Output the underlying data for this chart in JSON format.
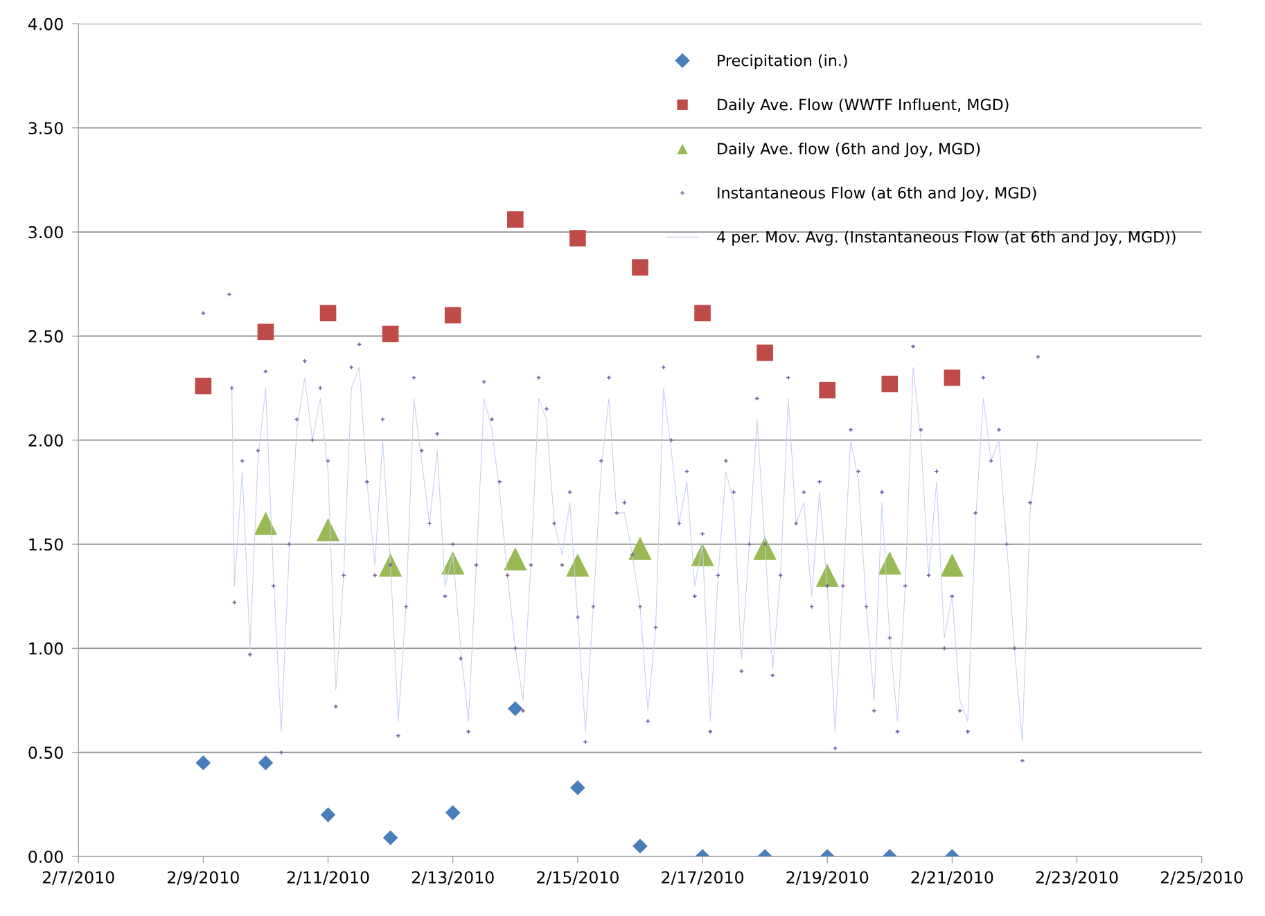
{
  "chart_data": {
    "type": "scatter",
    "legend": "top right",
    "grid": "y",
    "xlim": [
      "2010-02-07",
      "2010-02-25"
    ],
    "xticks": [
      {
        "value": "2010-02-07",
        "label": "2/7/2010"
      },
      {
        "value": "2010-02-09",
        "label": "2/9/2010"
      },
      {
        "value": "2010-02-11",
        "label": "2/11/2010"
      },
      {
        "value": "2010-02-13",
        "label": "2/13/2010"
      },
      {
        "value": "2010-02-15",
        "label": "2/15/2010"
      },
      {
        "value": "2010-02-17",
        "label": "2/17/2010"
      },
      {
        "value": "2010-02-19",
        "label": "2/19/2010"
      },
      {
        "value": "2010-02-21",
        "label": "2/21/2010"
      },
      {
        "value": "2010-02-23",
        "label": "2/23/2010"
      },
      {
        "value": "2010-02-25",
        "label": "2/25/2010"
      }
    ],
    "ylim": [
      0,
      4
    ],
    "yticks": [
      {
        "value": 0,
        "label": "0.00"
      },
      {
        "value": 0.5,
        "label": "0.50"
      },
      {
        "value": 1,
        "label": "1.00"
      },
      {
        "value": 1.5,
        "label": "1.50"
      },
      {
        "value": 2,
        "label": "2.00"
      },
      {
        "value": 2.5,
        "label": "2.50"
      },
      {
        "value": 3,
        "label": "3.00"
      },
      {
        "value": 3.5,
        "label": "3.50"
      },
      {
        "value": 4,
        "label": "4.00"
      }
    ],
    "series": [
      {
        "name": "Precipitation (in.)",
        "marker": "diamond",
        "color": "#4a7ebb",
        "x": [
          "2010-02-09",
          "2010-02-10",
          "2010-02-11",
          "2010-02-12",
          "2010-02-13",
          "2010-02-14",
          "2010-02-15",
          "2010-02-16",
          "2010-02-17",
          "2010-02-18",
          "2010-02-19",
          "2010-02-20",
          "2010-02-21"
        ],
        "values": [
          0.45,
          0.45,
          0.2,
          0.09,
          0.21,
          0.71,
          0.33,
          0.05,
          0,
          0,
          0,
          0,
          0
        ]
      },
      {
        "name": "Daily Ave. Flow (WWTF Influent, MGD)",
        "marker": "square",
        "color": "#be4b48",
        "x": [
          "2010-02-09",
          "2010-02-10",
          "2010-02-11",
          "2010-02-12",
          "2010-02-13",
          "2010-02-14",
          "2010-02-15",
          "2010-02-16",
          "2010-02-17",
          "2010-02-18",
          "2010-02-19",
          "2010-02-20",
          "2010-02-21"
        ],
        "values": [
          2.26,
          2.52,
          2.61,
          2.51,
          2.6,
          3.06,
          2.97,
          2.83,
          2.61,
          2.42,
          2.24,
          2.27,
          2.3
        ]
      },
      {
        "name": "Daily Ave. flow (6th and Joy, MGD)",
        "marker": "triangle",
        "color": "#98b954",
        "x": [
          "2010-02-10",
          "2010-02-11",
          "2010-02-12",
          "2010-02-13",
          "2010-02-14",
          "2010-02-15",
          "2010-02-16",
          "2010-02-17",
          "2010-02-18",
          "2010-02-19",
          "2010-02-20",
          "2010-02-21"
        ],
        "values": [
          1.6,
          1.57,
          1.4,
          1.41,
          1.43,
          1.4,
          1.48,
          1.45,
          1.48,
          1.35,
          1.41,
          1.4
        ]
      },
      {
        "name": "Instantaneous Flow (at 6th and Joy, MGD)",
        "marker": "cross",
        "color": "#7d60a0",
        "x": [
          "2010-02-09T00:00",
          "2010-02-09T10:00",
          "2010-02-09T11:00",
          "2010-02-09T12:00",
          "2010-02-09T15:00",
          "2010-02-09T18:00",
          "2010-02-09T21:00",
          "2010-02-10T00:00",
          "2010-02-10T03:00",
          "2010-02-10T06:00",
          "2010-02-10T09:00",
          "2010-02-10T12:00",
          "2010-02-10T15:00",
          "2010-02-10T18:00",
          "2010-02-10T21:00",
          "2010-02-11T00:00",
          "2010-02-11T03:00",
          "2010-02-11T06:00",
          "2010-02-11T09:00",
          "2010-02-11T12:00",
          "2010-02-11T15:00",
          "2010-02-11T18:00",
          "2010-02-11T21:00",
          "2010-02-12T00:00",
          "2010-02-12T03:00",
          "2010-02-12T06:00",
          "2010-02-12T09:00",
          "2010-02-12T12:00",
          "2010-02-12T15:00",
          "2010-02-12T18:00",
          "2010-02-12T21:00",
          "2010-02-13T00:00",
          "2010-02-13T03:00",
          "2010-02-13T06:00",
          "2010-02-13T09:00",
          "2010-02-13T12:00",
          "2010-02-13T15:00",
          "2010-02-13T18:00",
          "2010-02-13T21:00",
          "2010-02-14T00:00",
          "2010-02-14T03:00",
          "2010-02-14T06:00",
          "2010-02-14T09:00",
          "2010-02-14T12:00",
          "2010-02-14T15:00",
          "2010-02-14T18:00",
          "2010-02-14T21:00",
          "2010-02-15T00:00",
          "2010-02-15T03:00",
          "2010-02-15T06:00",
          "2010-02-15T09:00",
          "2010-02-15T12:00",
          "2010-02-15T15:00",
          "2010-02-15T18:00",
          "2010-02-15T21:00",
          "2010-02-16T00:00",
          "2010-02-16T03:00",
          "2010-02-16T06:00",
          "2010-02-16T09:00",
          "2010-02-16T12:00",
          "2010-02-16T15:00",
          "2010-02-16T18:00",
          "2010-02-16T21:00",
          "2010-02-17T00:00",
          "2010-02-17T03:00",
          "2010-02-17T06:00",
          "2010-02-17T09:00",
          "2010-02-17T12:00",
          "2010-02-17T15:00",
          "2010-02-17T18:00",
          "2010-02-17T21:00",
          "2010-02-18T00:00",
          "2010-02-18T03:00",
          "2010-02-18T06:00",
          "2010-02-18T09:00",
          "2010-02-18T12:00",
          "2010-02-18T15:00",
          "2010-02-18T18:00",
          "2010-02-18T21:00",
          "2010-02-19T00:00",
          "2010-02-19T03:00",
          "2010-02-19T06:00",
          "2010-02-19T09:00",
          "2010-02-19T12:00",
          "2010-02-19T15:00",
          "2010-02-19T18:00",
          "2010-02-19T21:00",
          "2010-02-20T00:00",
          "2010-02-20T03:00",
          "2010-02-20T06:00",
          "2010-02-20T09:00",
          "2010-02-20T12:00",
          "2010-02-20T15:00",
          "2010-02-20T18:00",
          "2010-02-20T21:00",
          "2010-02-21T00:00",
          "2010-02-21T03:00",
          "2010-02-21T06:00",
          "2010-02-21T09:00",
          "2010-02-21T12:00",
          "2010-02-21T15:00",
          "2010-02-21T18:00",
          "2010-02-21T21:00",
          "2010-02-22T00:00",
          "2010-02-22T03:00",
          "2010-02-22T06:00",
          "2010-02-22T09:00"
        ],
        "values": [
          2.61,
          2.7,
          2.25,
          1.22,
          1.9,
          0.97,
          1.95,
          2.33,
          1.3,
          0.5,
          1.5,
          2.1,
          2.38,
          2.0,
          2.25,
          1.9,
          0.72,
          1.35,
          2.35,
          2.46,
          1.8,
          1.35,
          2.1,
          1.4,
          0.58,
          1.2,
          2.3,
          1.95,
          1.6,
          2.03,
          1.25,
          1.5,
          0.95,
          0.6,
          1.4,
          2.28,
          2.1,
          1.8,
          1.35,
          1.0,
          0.7,
          1.4,
          2.3,
          2.15,
          1.6,
          1.4,
          1.75,
          1.15,
          0.55,
          1.2,
          1.9,
          2.3,
          1.65,
          1.7,
          1.45,
          1.2,
          0.65,
          1.1,
          2.35,
          2.0,
          1.6,
          1.85,
          1.25,
          1.55,
          0.6,
          1.35,
          1.9,
          1.75,
          0.89,
          1.5,
          2.2,
          1.5,
          0.87,
          1.35,
          2.3,
          1.6,
          1.75,
          1.2,
          1.8,
          1.3,
          0.52,
          1.3,
          2.05,
          1.85,
          1.2,
          0.7,
          1.75,
          1.05,
          0.6,
          1.3,
          2.45,
          2.05,
          1.35,
          1.85,
          1.0,
          1.25,
          0.7,
          0.6,
          1.65,
          2.3,
          1.9,
          2.05,
          1.5,
          1.0,
          0.46,
          1.7,
          2.4
        ]
      },
      {
        "name": "4 per. Mov. Avg. (Instantaneous Flow (at 6th and Joy, MGD))",
        "type": "line",
        "marker": "none",
        "line_style": "solid",
        "color": "#c5d3ee",
        "x": [
          "2010-02-09T11:00",
          "2010-02-09T12:00",
          "2010-02-09T15:00",
          "2010-02-09T18:00",
          "2010-02-09T21:00",
          "2010-02-10T00:00",
          "2010-02-10T03:00",
          "2010-02-10T06:00",
          "2010-02-10T09:00",
          "2010-02-10T12:00",
          "2010-02-10T15:00",
          "2010-02-10T18:00",
          "2010-02-10T21:00",
          "2010-02-11T00:00",
          "2010-02-11T03:00",
          "2010-02-11T06:00",
          "2010-02-11T09:00",
          "2010-02-11T12:00",
          "2010-02-11T15:00",
          "2010-02-11T18:00",
          "2010-02-11T21:00",
          "2010-02-12T00:00",
          "2010-02-12T03:00",
          "2010-02-12T06:00",
          "2010-02-12T09:00",
          "2010-02-12T12:00",
          "2010-02-12T15:00",
          "2010-02-12T18:00",
          "2010-02-12T21:00",
          "2010-02-13T00:00",
          "2010-02-13T03:00",
          "2010-02-13T06:00",
          "2010-02-13T09:00",
          "2010-02-13T12:00",
          "2010-02-13T15:00",
          "2010-02-13T18:00",
          "2010-02-13T21:00",
          "2010-02-14T00:00",
          "2010-02-14T03:00",
          "2010-02-14T06:00",
          "2010-02-14T09:00",
          "2010-02-14T12:00",
          "2010-02-14T15:00",
          "2010-02-14T18:00",
          "2010-02-14T21:00",
          "2010-02-15T00:00",
          "2010-02-15T03:00",
          "2010-02-15T06:00",
          "2010-02-15T09:00",
          "2010-02-15T12:00",
          "2010-02-15T15:00",
          "2010-02-15T18:00",
          "2010-02-15T21:00",
          "2010-02-16T00:00",
          "2010-02-16T03:00",
          "2010-02-16T06:00",
          "2010-02-16T09:00",
          "2010-02-16T12:00",
          "2010-02-16T15:00",
          "2010-02-16T18:00",
          "2010-02-16T21:00",
          "2010-02-17T00:00",
          "2010-02-17T03:00",
          "2010-02-17T06:00",
          "2010-02-17T09:00",
          "2010-02-17T12:00",
          "2010-02-17T15:00",
          "2010-02-17T18:00",
          "2010-02-17T21:00",
          "2010-02-18T00:00",
          "2010-02-18T03:00",
          "2010-02-18T06:00",
          "2010-02-18T09:00",
          "2010-02-18T12:00",
          "2010-02-18T15:00",
          "2010-02-18T18:00",
          "2010-02-18T21:00",
          "2010-02-19T00:00",
          "2010-02-19T03:00",
          "2010-02-19T06:00",
          "2010-02-19T09:00",
          "2010-02-19T12:00",
          "2010-02-19T15:00",
          "2010-02-19T18:00",
          "2010-02-19T21:00",
          "2010-02-20T00:00",
          "2010-02-20T03:00",
          "2010-02-20T06:00",
          "2010-02-20T09:00",
          "2010-02-20T12:00",
          "2010-02-20T15:00",
          "2010-02-20T18:00",
          "2010-02-20T21:00",
          "2010-02-21T00:00",
          "2010-02-21T03:00",
          "2010-02-21T06:00",
          "2010-02-21T09:00",
          "2010-02-21T12:00",
          "2010-02-21T15:00",
          "2010-02-21T18:00",
          "2010-02-21T21:00",
          "2010-02-22T00:00",
          "2010-02-22T03:00",
          "2010-02-22T06:00",
          "2010-02-22T09:00"
        ],
        "values": [
          2.25,
          1.3,
          1.85,
          1.0,
          1.9,
          2.25,
          1.35,
          0.6,
          1.45,
          2.05,
          2.3,
          2.0,
          2.2,
          1.85,
          0.8,
          1.35,
          2.25,
          2.35,
          1.8,
          1.4,
          2.0,
          1.4,
          0.65,
          1.2,
          2.2,
          1.9,
          1.6,
          1.95,
          1.3,
          1.45,
          1.0,
          0.65,
          1.4,
          2.2,
          2.05,
          1.75,
          1.35,
          1.0,
          0.75,
          1.4,
          2.2,
          2.1,
          1.6,
          1.45,
          1.7,
          1.15,
          0.6,
          1.2,
          1.85,
          2.2,
          1.65,
          1.65,
          1.45,
          1.2,
          0.7,
          1.1,
          2.25,
          1.95,
          1.6,
          1.8,
          1.3,
          1.5,
          0.65,
          1.35,
          1.85,
          1.7,
          0.95,
          1.5,
          2.1,
          1.5,
          0.9,
          1.35,
          2.2,
          1.6,
          1.7,
          1.25,
          1.75,
          1.3,
          0.6,
          1.3,
          2.0,
          1.8,
          1.2,
          0.75,
          1.7,
          1.05,
          0.65,
          1.3,
          2.35,
          2.0,
          1.35,
          1.8,
          1.05,
          1.25,
          0.75,
          0.65,
          1.6,
          2.2,
          1.9,
          2.0,
          1.5,
          1.0,
          0.55,
          1.65,
          2.0
        ]
      }
    ]
  }
}
